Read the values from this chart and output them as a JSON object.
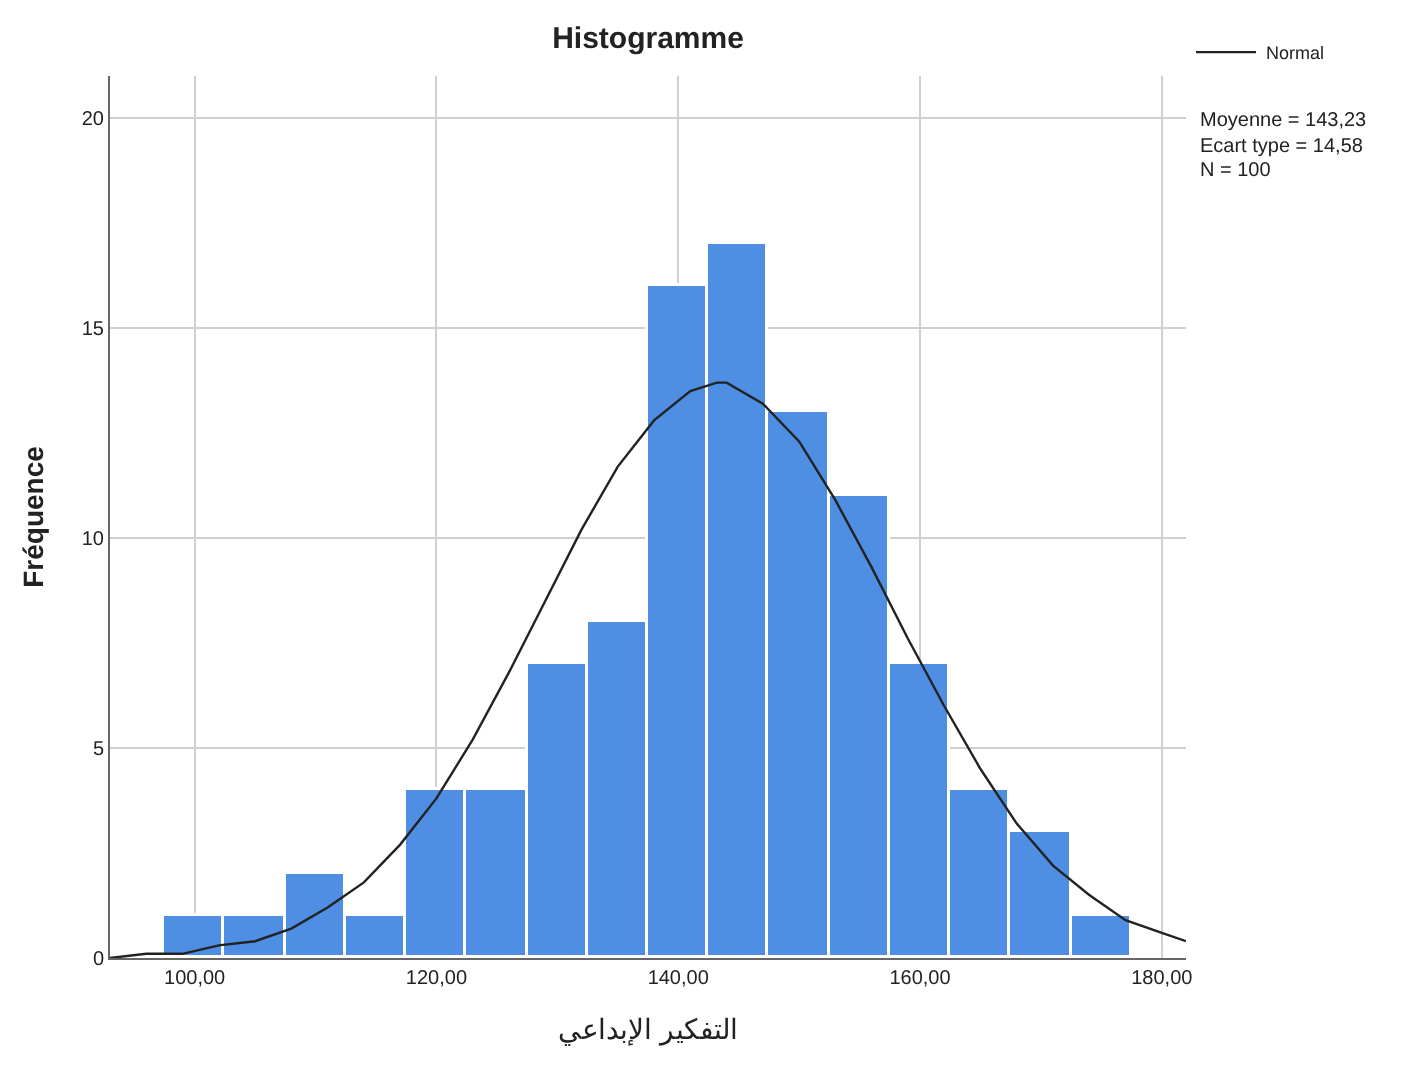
{
  "chart_data": {
    "type": "histogram",
    "title": "Histogramme",
    "xlabel": "التفكير الإبداعي",
    "ylabel": "Fréquence",
    "bins": [
      97.5,
      102.5,
      107.5,
      112.5,
      117.5,
      122.5,
      127.5,
      132.5,
      137.5,
      142.5,
      147.5,
      152.5,
      157.5,
      162.5,
      167.5,
      172.5,
      177.5
    ],
    "series": [
      {
        "color": "#4f8fe3",
        "values": [
          1,
          1,
          2,
          1,
          4,
          4,
          7,
          8,
          16,
          17,
          13,
          11,
          7,
          4,
          3,
          1
        ]
      },
      {
        "type": "line",
        "name": "Normal",
        "color": "#222222",
        "x": [
          93,
          96,
          99,
          102,
          105,
          108,
          111,
          114,
          117,
          120,
          123,
          126,
          129,
          132,
          135,
          138,
          141,
          143.2,
          144,
          147,
          150,
          153,
          156,
          159,
          162,
          165,
          168,
          171,
          174,
          177,
          180,
          182
        ],
        "values": [
          0.0,
          0.1,
          0.1,
          0.3,
          0.4,
          0.7,
          1.2,
          1.8,
          2.7,
          3.8,
          5.2,
          6.8,
          8.5,
          10.2,
          11.7,
          12.8,
          13.5,
          13.7,
          13.7,
          13.2,
          12.3,
          10.9,
          9.3,
          7.6,
          6.0,
          4.5,
          3.2,
          2.2,
          1.5,
          0.9,
          0.6,
          0.4
        ]
      }
    ],
    "annotations": [
      "Moyenne = 143,23",
      "Ecart type = 14,58",
      "N = 100"
    ],
    "xlim": [
      93,
      182
    ],
    "xticks": [
      {
        "value": 100,
        "label": "100,00"
      },
      {
        "value": 120,
        "label": "120,00"
      },
      {
        "value": 140,
        "label": "140,00"
      },
      {
        "value": 160,
        "label": "160,00"
      },
      {
        "value": 180,
        "label": "180,00"
      }
    ],
    "ylim": [
      0,
      21
    ],
    "yticks": [
      0,
      5,
      10,
      15,
      20
    ],
    "grid": true,
    "legend": "top right",
    "marker": "none",
    "line_style": "solid"
  }
}
